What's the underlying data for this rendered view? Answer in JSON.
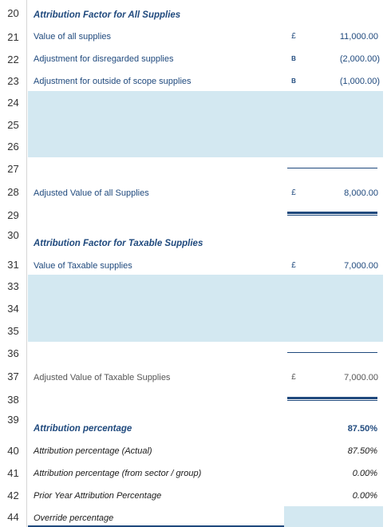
{
  "rows": {
    "r20": {
      "num": "20",
      "label": "Attribution Factor for All Supplies"
    },
    "r21": {
      "num": "21",
      "label": "Value of all supplies",
      "cur": "£",
      "value": "11,000.00"
    },
    "r22": {
      "num": "22",
      "label": "Adjustment for disregarded supplies",
      "cur": "B",
      "value": "(2,000.00)"
    },
    "r23": {
      "num": "23",
      "label": "Adjustment for outside of scope supplies",
      "cur": "B",
      "value": "(1,000.00)"
    },
    "r24": {
      "num": "24"
    },
    "r25": {
      "num": "25"
    },
    "r26": {
      "num": "26"
    },
    "r27": {
      "num": "27"
    },
    "r28": {
      "num": "28",
      "label": "Adjusted Value of all Supplies",
      "cur": "£",
      "value": "8,000.00"
    },
    "r29": {
      "num": "29"
    },
    "r30": {
      "num": "30",
      "label": "Attribution Factor for Taxable Supplies"
    },
    "r31": {
      "num": "31",
      "label": "Value of Taxable supplies",
      "cur": "£",
      "value": "7,000.00"
    },
    "r33": {
      "num": "33"
    },
    "r34": {
      "num": "34"
    },
    "r35": {
      "num": "35"
    },
    "r36": {
      "num": "36"
    },
    "r37": {
      "num": "37",
      "label": "Adjusted Value of Taxable Supplies",
      "cur": "£",
      "value": "7,000.00"
    },
    "r38": {
      "num": "38"
    },
    "r39": {
      "num": "39",
      "label": "Attribution percentage",
      "value": "87.50%"
    },
    "r40": {
      "num": "40",
      "label": "Attribution percentage (Actual)",
      "value": "87.50%"
    },
    "r41": {
      "num": "41",
      "label": "Attribution percentage (from sector / group)",
      "value": "0.00%"
    },
    "r42": {
      "num": "42",
      "label": "Prior Year Attribution Percentage",
      "value": "0.00%"
    },
    "r44": {
      "num": "44",
      "label": "Override percentage"
    }
  }
}
